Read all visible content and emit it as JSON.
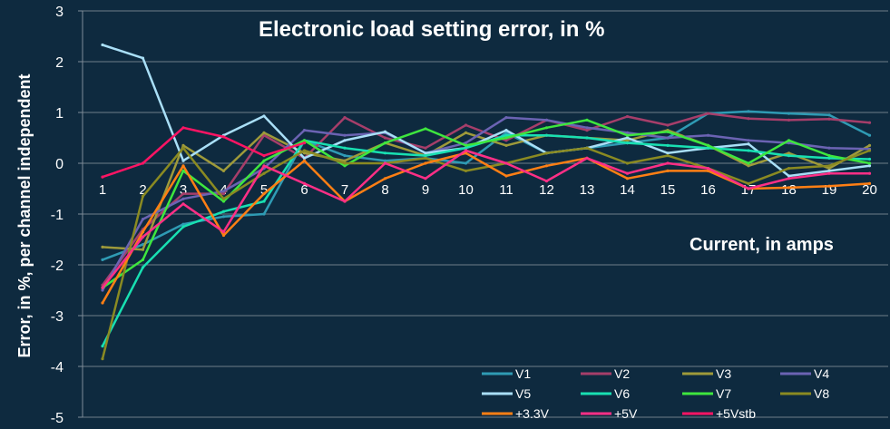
{
  "chart_data": {
    "type": "line",
    "title": "Electronic load setting error, in %",
    "xlabel": "Current, in amps",
    "ylabel": "Error, in %, per channel independent",
    "ylim": [
      -5,
      3
    ],
    "yticks": [
      "3",
      "2",
      "1",
      "0",
      "-1",
      "-2",
      "-3",
      "-4",
      "-5"
    ],
    "categories": [
      "1",
      "2",
      "3",
      "4",
      "5",
      "6",
      "7",
      "8",
      "9",
      "10",
      "11",
      "12",
      "13",
      "14",
      "15",
      "16",
      "17",
      "18",
      "19",
      "20"
    ],
    "grid": "horizontal",
    "legend_position": "bottom-right",
    "series": [
      {
        "name": "V1",
        "color": "#2f9bb4",
        "values": [
          -1.9,
          -1.6,
          -1.2,
          -1.05,
          -1.0,
          0.45,
          0.15,
          0.05,
          0.1,
          0.0,
          0.6,
          0.2,
          0.3,
          0.4,
          0.5,
          0.98,
          1.02,
          0.98,
          0.95,
          0.55
        ]
      },
      {
        "name": "V2",
        "color": "#a63e6a",
        "values": [
          -2.4,
          -1.3,
          -0.6,
          -0.6,
          0.55,
          0.1,
          0.9,
          0.5,
          0.3,
          0.75,
          0.45,
          0.85,
          0.65,
          0.92,
          0.75,
          0.98,
          0.88,
          0.85,
          0.87,
          0.8
        ]
      },
      {
        "name": "V3",
        "color": "#9e9a3a",
        "values": [
          -1.65,
          -1.7,
          0.35,
          -0.15,
          0.6,
          0.2,
          0.05,
          0.4,
          0.15,
          0.6,
          0.35,
          0.55,
          0.5,
          0.45,
          0.65,
          0.35,
          -0.05,
          0.2,
          -0.1,
          0.35
        ]
      },
      {
        "name": "V4",
        "color": "#6b63b3",
        "values": [
          -2.5,
          -1.1,
          -0.7,
          -0.55,
          -0.1,
          0.65,
          0.55,
          0.6,
          0.2,
          0.4,
          0.9,
          0.85,
          0.7,
          0.6,
          0.5,
          0.55,
          0.45,
          0.4,
          0.3,
          0.28
        ]
      },
      {
        "name": "V5",
        "color": "#a9dff7",
        "values": [
          2.33,
          2.07,
          0.05,
          0.55,
          0.93,
          0.1,
          0.45,
          0.62,
          0.2,
          0.3,
          0.65,
          0.2,
          0.3,
          0.5,
          0.2,
          0.3,
          0.38,
          -0.25,
          -0.15,
          -0.05
        ]
      },
      {
        "name": "V6",
        "color": "#18e0b2",
        "values": [
          -3.6,
          -2.05,
          -1.25,
          -0.95,
          -0.75,
          0.45,
          0.3,
          0.2,
          0.15,
          0.3,
          0.55,
          0.55,
          0.5,
          0.4,
          0.35,
          0.3,
          0.25,
          0.15,
          0.1,
          0.08
        ]
      },
      {
        "name": "V7",
        "color": "#3ee63e",
        "values": [
          -2.45,
          -1.9,
          -0.15,
          -0.75,
          0.05,
          0.45,
          -0.05,
          0.4,
          0.68,
          0.35,
          0.5,
          0.7,
          0.85,
          0.55,
          0.62,
          0.35,
          0.0,
          0.45,
          0.15,
          0.0
        ]
      },
      {
        "name": "V8",
        "color": "#8a8a22",
        "values": [
          -3.85,
          -0.65,
          0.3,
          -0.7,
          -0.2,
          0.25,
          0.0,
          0.0,
          0.1,
          -0.15,
          0.0,
          0.2,
          0.3,
          0.0,
          0.15,
          -0.1,
          -0.4,
          -0.1,
          -0.05,
          0.25
        ]
      },
      {
        "name": "+3.3V",
        "color": "#ff7f14",
        "values": [
          -2.75,
          -1.35,
          -0.05,
          -1.42,
          -0.6,
          0.05,
          -0.75,
          -0.3,
          0.0,
          0.2,
          -0.25,
          -0.05,
          0.1,
          -0.3,
          -0.15,
          -0.15,
          -0.5,
          -0.48,
          -0.45,
          -0.4
        ]
      },
      {
        "name": "+5V",
        "color": "#ff2f86",
        "values": [
          -2.45,
          -1.45,
          -0.8,
          -1.35,
          -0.05,
          -0.4,
          -0.75,
          0.0,
          -0.3,
          0.25,
          0.0,
          -0.35,
          0.1,
          -0.2,
          0.0,
          -0.1,
          -0.5,
          -0.3,
          -0.2,
          -0.2
        ]
      },
      {
        "name": "+5Vstb",
        "color": "#ff1464",
        "values": [
          -0.27,
          0.0,
          0.7,
          0.52,
          0.15,
          0.4,
          null,
          null,
          null,
          null,
          null,
          null,
          null,
          null,
          null,
          null,
          null,
          null,
          null,
          null
        ]
      }
    ]
  }
}
